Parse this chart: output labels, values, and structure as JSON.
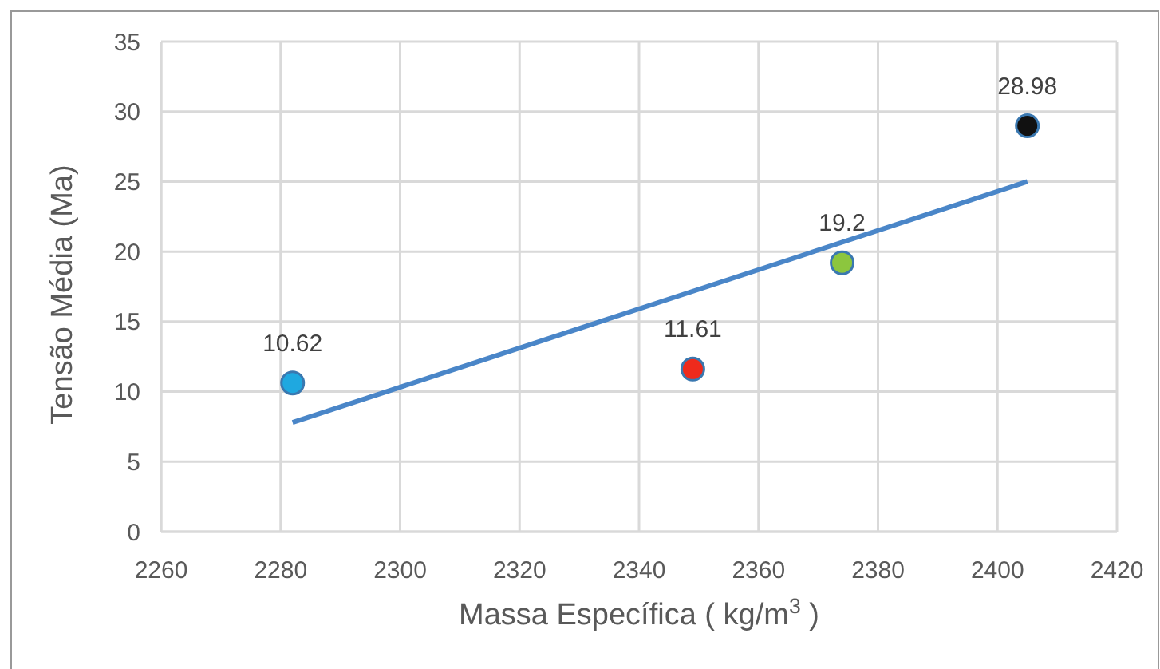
{
  "chart_data": {
    "type": "scatter",
    "xlabel": "Massa Específica ( kg/m$^{3}$ )",
    "ylabel": "Tensão Média (Ma)",
    "xlim": [
      2260,
      2420
    ],
    "xticks": [
      2260,
      2280,
      2300,
      2320,
      2340,
      2360,
      2380,
      2400,
      2420
    ],
    "ylim": [
      0,
      35
    ],
    "yticks": [
      0,
      5,
      10,
      15,
      20,
      25,
      30,
      35
    ],
    "grid": true,
    "series": [
      {
        "x": [
          2282,
          2349,
          2374,
          2405
        ],
        "values": [
          10.62,
          11.61,
          19.2,
          28.98
        ],
        "colors": [
          "#1fa8e0",
          "#ee2a1c",
          "#8cc63e",
          "#111111"
        ],
        "marker": "circle",
        "data_labels": true
      },
      {
        "type": "line",
        "x": [
          2282,
          2405
        ],
        "values": [
          7.8,
          25
        ],
        "color": "#4a86c8",
        "line_style": "solid",
        "marker": "none"
      }
    ]
  }
}
